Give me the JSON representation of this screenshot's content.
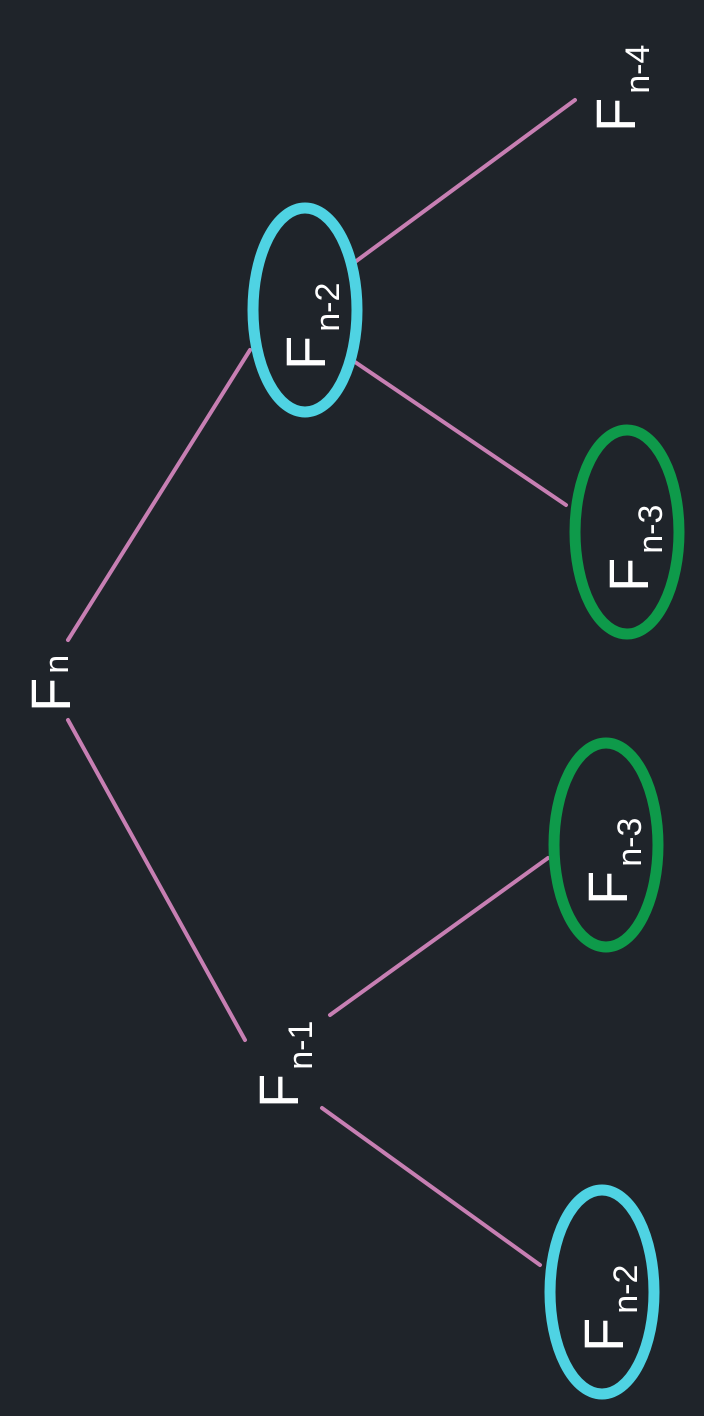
{
  "colors": {
    "background": "#1f242a",
    "edge": "#c77fb3",
    "highlight_n_minus_2": "#4fd3e3",
    "highlight_n_minus_3": "#0e9a4a",
    "text": "#ffffff"
  },
  "nodes": {
    "fn": {
      "main": "F",
      "sub": "n"
    },
    "fn1": {
      "main": "F",
      "sub": "n-1"
    },
    "fn2_top": {
      "main": "F",
      "sub": "n-2"
    },
    "fn2_bottom": {
      "main": "F",
      "sub": "n-2"
    },
    "fn3_top": {
      "main": "F",
      "sub": "n-3"
    },
    "fn3_bottom": {
      "main": "F",
      "sub": "n-3"
    },
    "fn4": {
      "main": "F",
      "sub": "n-4"
    }
  }
}
